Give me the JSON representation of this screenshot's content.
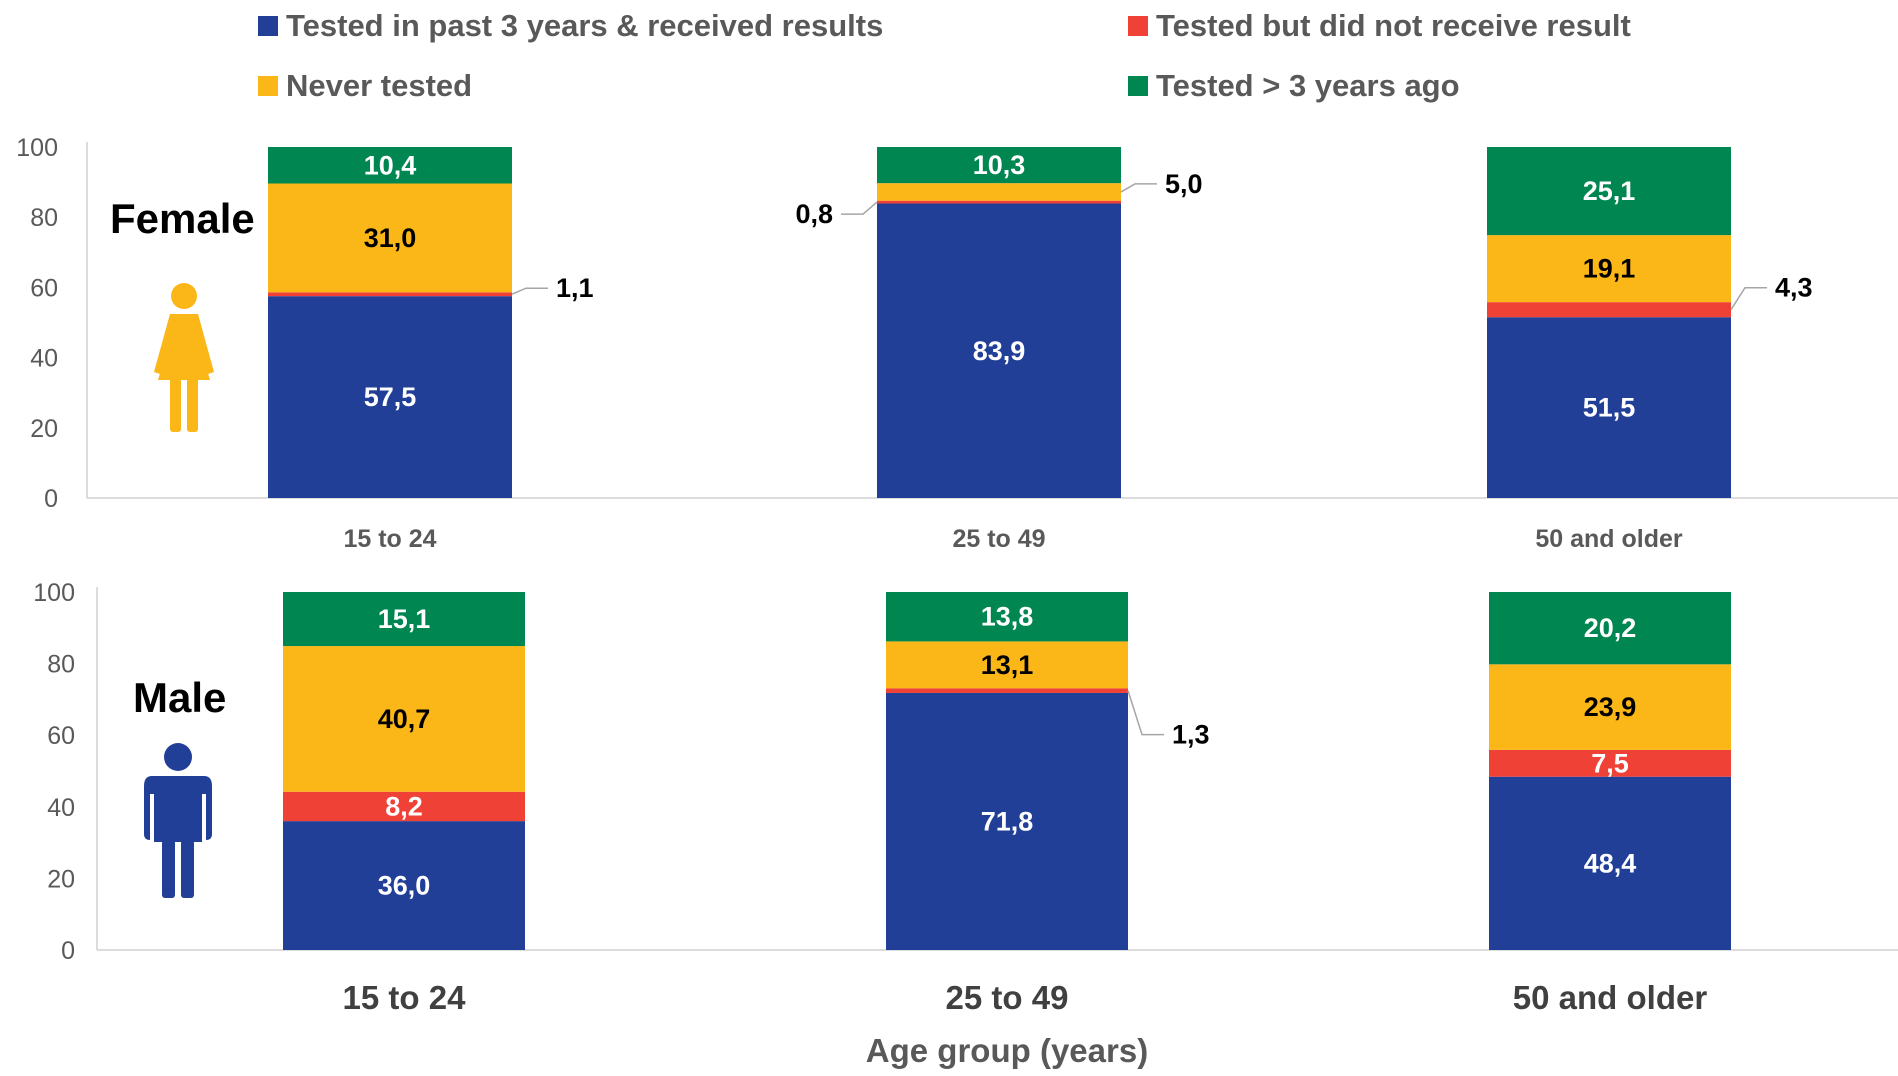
{
  "legend": {
    "items": [
      {
        "label": "Tested in past 3 years & received results",
        "color": "#223f98"
      },
      {
        "label": "Tested but did not receive result",
        "color": "#ef4136"
      },
      {
        "label": "Never tested",
        "color": "#fbb617"
      },
      {
        "label": "Tested > 3 years ago",
        "color": "#008650"
      }
    ]
  },
  "panels": [
    {
      "name": "Female",
      "icon": "female-person-icon",
      "icon_color": "#fbb617"
    },
    {
      "name": "Male",
      "icon": "male-person-icon",
      "icon_color": "#223f98"
    }
  ],
  "xlabel": "Age group (years)",
  "chart_data": [
    {
      "type": "bar",
      "stacked": true,
      "panel": "Female",
      "categories": [
        "15 to 24",
        "25 to 49",
        "50 and older"
      ],
      "ylim": [
        0,
        100
      ],
      "yticks": [
        0,
        20,
        40,
        60,
        80,
        100
      ],
      "series": [
        {
          "name": "Tested in past 3 years & received results",
          "values": [
            57.5,
            83.9,
            51.5
          ],
          "labels": [
            "57,5",
            "83,9",
            "51,5"
          ]
        },
        {
          "name": "Tested but did not receive result",
          "values": [
            1.1,
            0.8,
            4.3
          ],
          "labels": [
            "1,1",
            "0,8",
            "4,3"
          ]
        },
        {
          "name": "Never tested",
          "values": [
            31.0,
            5.0,
            19.1
          ],
          "labels": [
            "31,0",
            "5,0",
            "19,1"
          ]
        },
        {
          "name": "Tested > 3 years ago",
          "values": [
            10.4,
            10.3,
            25.1
          ],
          "labels": [
            "10,4",
            "10,3",
            "25,1"
          ]
        }
      ]
    },
    {
      "type": "bar",
      "stacked": true,
      "panel": "Male",
      "categories": [
        "15 to 24",
        "25 to 49",
        "50 and older"
      ],
      "ylim": [
        0,
        100
      ],
      "yticks": [
        0,
        20,
        40,
        60,
        80,
        100
      ],
      "xlabel": "Age group (years)",
      "series": [
        {
          "name": "Tested in past 3 years & received results",
          "values": [
            36.0,
            71.8,
            48.4
          ],
          "labels": [
            "36,0",
            "71,8",
            "48,4"
          ]
        },
        {
          "name": "Tested but did not receive result",
          "values": [
            8.2,
            1.3,
            7.5
          ],
          "labels": [
            "8,2",
            "1,3",
            "7,5"
          ]
        },
        {
          "name": "Never tested",
          "values": [
            40.7,
            13.1,
            23.9
          ],
          "labels": [
            "40,7",
            "13,1",
            "23,9"
          ]
        },
        {
          "name": "Tested > 3 years ago",
          "values": [
            15.1,
            13.8,
            20.2
          ],
          "labels": [
            "15,1",
            "13,8",
            "20,2"
          ]
        }
      ]
    }
  ]
}
